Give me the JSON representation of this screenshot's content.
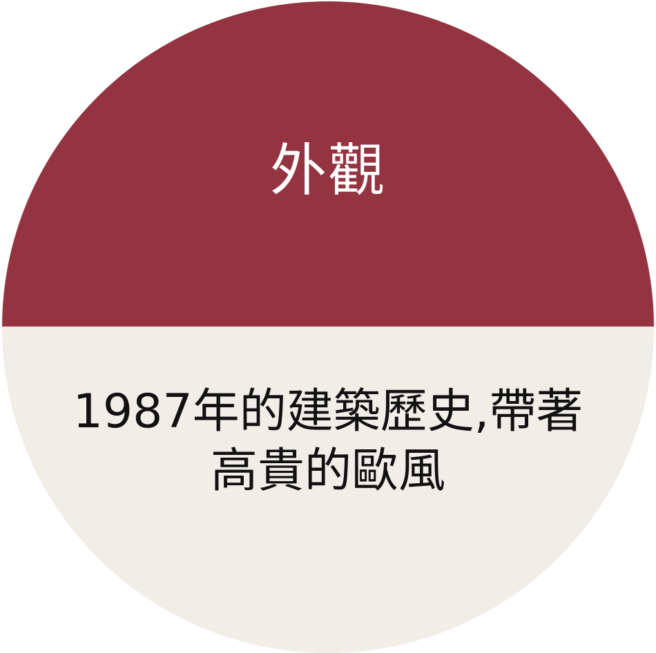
{
  "badge": {
    "title": "外觀",
    "description_lines": [
      "1987年的建築歷史,帶著",
      "高貴的歐風"
    ],
    "colors": {
      "top": "#933440",
      "bottom": "#f1ede7",
      "title_text": "#ffffff",
      "body_text": "#111111"
    }
  }
}
